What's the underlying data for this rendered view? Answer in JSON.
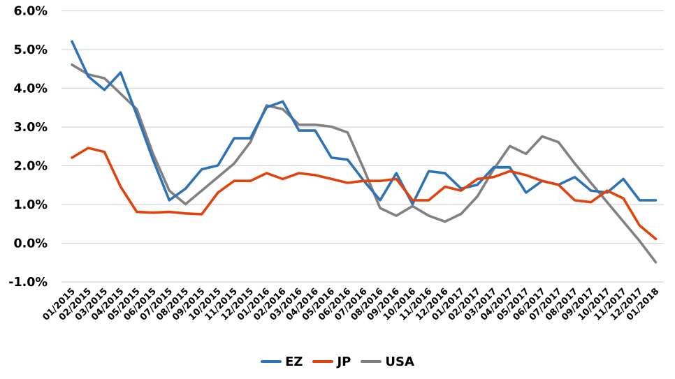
{
  "chart_data": {
    "type": "line",
    "title": "",
    "xlabel": "",
    "ylabel": "",
    "grid": "horizontal",
    "gridline_color": "#D6D6D6",
    "legend_position": "bottom",
    "x_labels": [
      "01/2015",
      "02/2015",
      "03/2015",
      "04/2015",
      "05/2015",
      "06/2015",
      "07/2015",
      "08/2015",
      "09/2015",
      "10/2015",
      "11/2015",
      "12/2015",
      "01/2016",
      "02/2016",
      "03/2016",
      "04/2016",
      "05/2016",
      "06/2016",
      "07/2016",
      "08/2016",
      "09/2016",
      "10/2016",
      "11/2016",
      "12/2016",
      "01/2017",
      "02/2017",
      "03/2017",
      "04/2017",
      "05/2017",
      "06/2017",
      "07/2017",
      "08/2017",
      "09/2017",
      "10/2017",
      "11/2017",
      "12/2017",
      "01/2018"
    ],
    "y_axis": {
      "min": -1.0,
      "max": 6.0,
      "step": 1.0,
      "tick_labels": [
        "6.0%",
        "5.0%",
        "4.0%",
        "3.0%",
        "2.0%",
        "1.0%",
        "0.0%",
        "-1.0%"
      ]
    },
    "series": [
      {
        "name": "EZ",
        "color": "#2E74B5",
        "values": [
          5.2,
          4.3,
          3.95,
          4.4,
          3.3,
          2.15,
          1.1,
          1.4,
          1.9,
          2.0,
          2.7,
          2.7,
          3.5,
          3.65,
          2.9,
          2.9,
          2.2,
          2.15,
          1.6,
          1.1,
          1.8,
          1.0,
          1.85,
          1.8,
          1.4,
          1.5,
          1.95,
          1.95,
          1.3,
          1.6,
          1.5,
          1.7,
          1.35,
          1.3,
          1.65,
          1.1,
          1.1
        ]
      },
      {
        "name": "JP",
        "color": "#E0440E",
        "values": [
          2.2,
          2.45,
          2.35,
          1.45,
          0.8,
          0.78,
          0.8,
          0.76,
          0.74,
          1.3,
          1.6,
          1.6,
          1.8,
          1.65,
          1.8,
          1.75,
          1.65,
          1.55,
          1.6,
          1.6,
          1.65,
          1.1,
          1.1,
          1.45,
          1.35,
          1.65,
          1.7,
          1.85,
          1.75,
          1.6,
          1.5,
          1.1,
          1.05,
          1.35,
          1.15,
          0.45,
          0.1
        ]
      },
      {
        "name": "USA",
        "color": "#818181",
        "values": [
          4.6,
          4.35,
          4.25,
          3.85,
          3.45,
          2.3,
          1.35,
          1.0,
          1.35,
          1.7,
          2.05,
          2.6,
          3.55,
          3.45,
          3.05,
          3.05,
          3.0,
          2.85,
          1.9,
          0.9,
          0.7,
          0.95,
          0.7,
          0.55,
          0.75,
          1.2,
          1.9,
          2.5,
          2.3,
          2.75,
          2.6,
          2.05,
          1.55,
          1.05,
          0.55,
          0.05,
          -0.5
        ]
      }
    ]
  }
}
